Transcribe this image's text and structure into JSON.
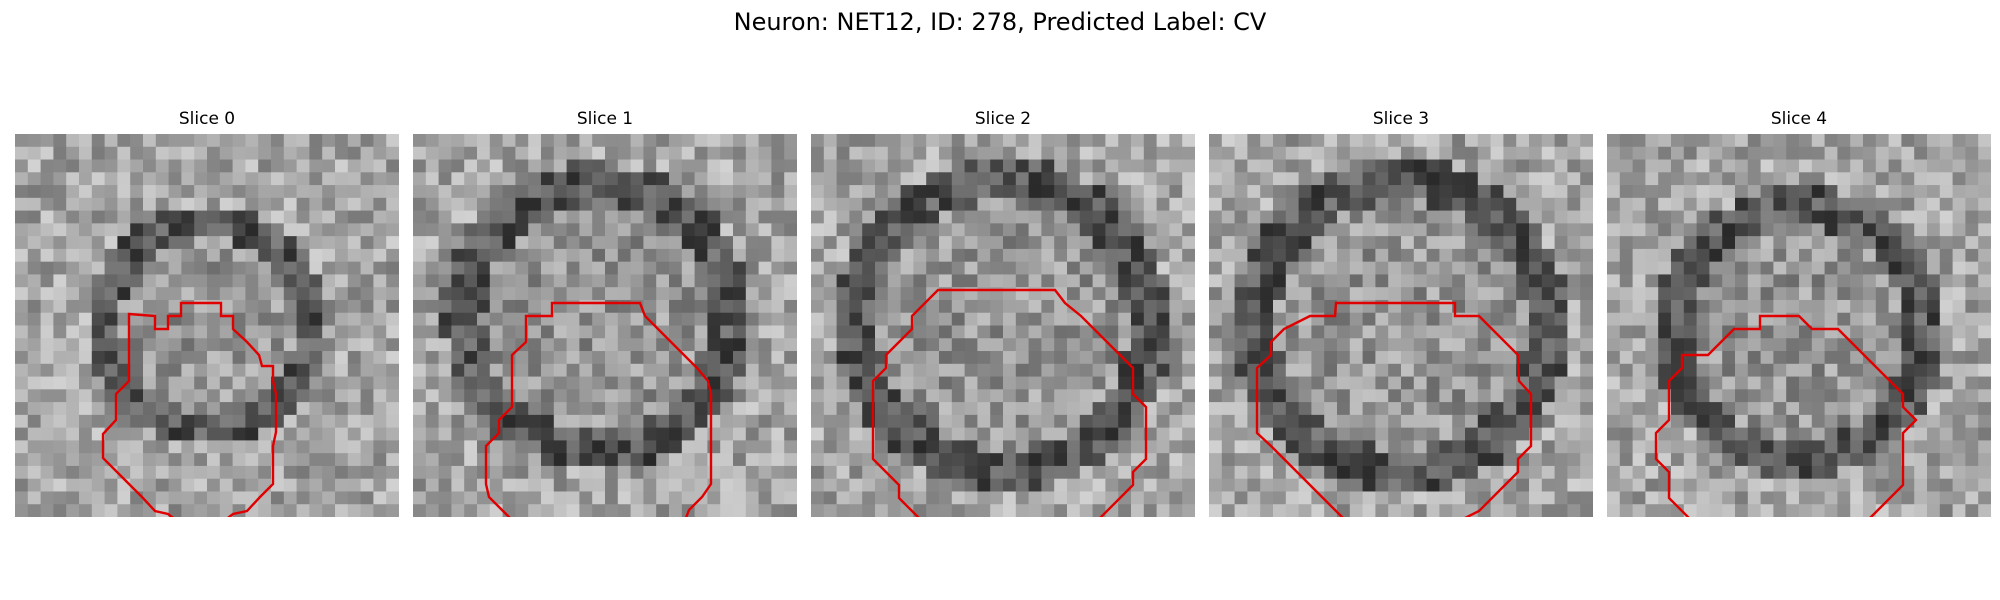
{
  "figure": {
    "title": "Neuron: NET12, ID: 278, Predicted Label: CV"
  },
  "panels": [
    {
      "title": "Slice 0",
      "contour_color": "#e00000"
    },
    {
      "title": "Slice 1",
      "contour_color": "#e00000"
    },
    {
      "title": "Slice 2",
      "contour_color": "#e00000"
    },
    {
      "title": "Slice 3",
      "contour_color": "#e00000"
    },
    {
      "title": "Slice 4",
      "contour_color": "#e00000"
    }
  ]
}
